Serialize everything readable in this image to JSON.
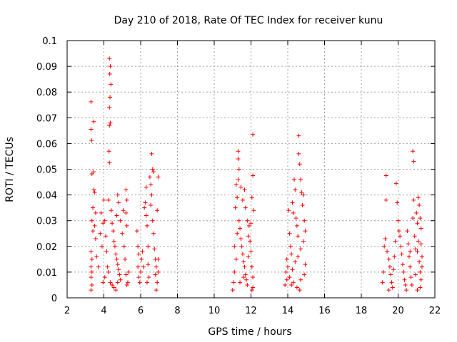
{
  "chart_data": {
    "type": "scatter",
    "title": "Day 210 of 2018, Rate Of TEC Index for receiver kunu",
    "xlabel": "GPS time / hours",
    "ylabel": "ROTI / TECUs",
    "xlim": [
      2,
      22
    ],
    "ylim": [
      0,
      0.1
    ],
    "xticks": [
      "2",
      "4",
      "6",
      "8",
      "10",
      "12",
      "14",
      "16",
      "18",
      "20",
      "22"
    ],
    "yticks": [
      "0",
      "0.01",
      "0.02",
      "0.03",
      "0.04",
      "0.05",
      "0.06",
      "0.07",
      "0.08",
      "0.09",
      "0.1"
    ],
    "grid": true,
    "marker": "+",
    "color": "#ff0000",
    "series": [
      {
        "points": [
          [
            3.3,
            0.0762
          ],
          [
            3.3,
            0.0655
          ],
          [
            3.33,
            0.0612
          ],
          [
            3.45,
            0.0685
          ],
          [
            3.35,
            0.0482
          ],
          [
            3.45,
            0.049
          ],
          [
            3.45,
            0.042
          ],
          [
            3.5,
            0.041
          ],
          [
            3.4,
            0.035
          ],
          [
            3.55,
            0.033
          ],
          [
            3.35,
            0.03
          ],
          [
            3.5,
            0.028
          ],
          [
            3.4,
            0.026
          ],
          [
            3.55,
            0.023
          ],
          [
            3.3,
            0.018
          ],
          [
            3.35,
            0.015
          ],
          [
            3.3,
            0.012
          ],
          [
            3.35,
            0.01
          ],
          [
            3.3,
            0.008
          ],
          [
            3.35,
            0.005
          ],
          [
            3.3,
            0.003
          ],
          [
            3.6,
            0.016
          ],
          [
            3.7,
            0.012
          ],
          [
            3.8,
            0.025
          ],
          [
            3.85,
            0.033
          ],
          [
            3.95,
            0.029
          ],
          [
            3.9,
            0.02
          ],
          [
            4.0,
            0.038
          ],
          [
            4.05,
            0.03
          ],
          [
            4.1,
            0.024
          ],
          [
            4.15,
            0.018
          ],
          [
            4.2,
            0.012
          ],
          [
            4.05,
            0.008
          ],
          [
            3.95,
            0.006
          ],
          [
            4.25,
            0.038
          ],
          [
            4.3,
            0.093
          ],
          [
            4.35,
            0.09
          ],
          [
            4.32,
            0.087
          ],
          [
            4.38,
            0.083
          ],
          [
            4.33,
            0.078
          ],
          [
            4.3,
            0.074
          ],
          [
            4.35,
            0.068
          ],
          [
            4.3,
            0.067
          ],
          [
            4.28,
            0.057
          ],
          [
            4.3,
            0.0525
          ],
          [
            4.4,
            0.034
          ],
          [
            4.45,
            0.029
          ],
          [
            4.5,
            0.026
          ],
          [
            4.55,
            0.022
          ],
          [
            4.6,
            0.02
          ],
          [
            4.65,
            0.017
          ],
          [
            4.7,
            0.015
          ],
          [
            4.75,
            0.013
          ],
          [
            4.8,
            0.011
          ],
          [
            4.85,
            0.009
          ],
          [
            4.25,
            0.01
          ],
          [
            4.35,
            0.006
          ],
          [
            4.45,
            0.005
          ],
          [
            4.55,
            0.004
          ],
          [
            4.65,
            0.003
          ],
          [
            4.75,
            0.006
          ],
          [
            4.9,
            0.007
          ],
          [
            4.7,
            0.032
          ],
          [
            4.8,
            0.037
          ],
          [
            4.75,
            0.04
          ],
          [
            4.9,
            0.03
          ],
          [
            5.0,
            0.025
          ],
          [
            5.05,
            0.034
          ],
          [
            5.1,
            0.02
          ],
          [
            5.15,
            0.015
          ],
          [
            5.2,
            0.042
          ],
          [
            5.25,
            0.038
          ],
          [
            5.2,
            0.033
          ],
          [
            5.25,
            0.028
          ],
          [
            5.3,
            0.006
          ],
          [
            5.25,
            0.005
          ],
          [
            5.35,
            0.01
          ],
          [
            5.2,
            0.009
          ],
          [
            5.8,
            0.026
          ],
          [
            5.85,
            0.02
          ],
          [
            5.9,
            0.017
          ],
          [
            5.85,
            0.012
          ],
          [
            5.9,
            0.008
          ],
          [
            5.95,
            0.006
          ],
          [
            6.0,
            0.01
          ],
          [
            6.05,
            0.015
          ],
          [
            6.1,
            0.018
          ],
          [
            6.15,
            0.012
          ],
          [
            6.2,
            0.035
          ],
          [
            6.25,
            0.037
          ],
          [
            6.3,
            0.032
          ],
          [
            6.3,
            0.043
          ],
          [
            6.35,
            0.028
          ],
          [
            6.4,
            0.02
          ],
          [
            6.4,
            0.013
          ],
          [
            6.45,
            0.008
          ],
          [
            6.35,
            0.006
          ],
          [
            6.5,
            0.047
          ],
          [
            6.55,
            0.044
          ],
          [
            6.6,
            0.056
          ],
          [
            6.65,
            0.05
          ],
          [
            6.7,
            0.049
          ],
          [
            6.6,
            0.04
          ],
          [
            6.55,
            0.036
          ],
          [
            6.65,
            0.03
          ],
          [
            6.7,
            0.025
          ],
          [
            6.75,
            0.019
          ],
          [
            6.8,
            0.015
          ],
          [
            6.85,
            0.012
          ],
          [
            6.8,
            0.009
          ],
          [
            6.9,
            0.006
          ],
          [
            6.85,
            0.003
          ],
          [
            6.95,
            0.047
          ],
          [
            6.9,
            0.034
          ],
          [
            6.95,
            0.01
          ],
          [
            6.95,
            0.015
          ],
          [
            11.0,
            0.003
          ],
          [
            11.05,
            0.006
          ],
          [
            11.1,
            0.01
          ],
          [
            11.15,
            0.035
          ],
          [
            11.2,
            0.044
          ],
          [
            11.25,
            0.039
          ],
          [
            11.3,
            0.057
          ],
          [
            11.3,
            0.054
          ],
          [
            11.35,
            0.05
          ],
          [
            11.3,
            0.046
          ],
          [
            11.35,
            0.03
          ],
          [
            11.4,
            0.027
          ],
          [
            11.45,
            0.023
          ],
          [
            11.5,
            0.02
          ],
          [
            11.55,
            0.017
          ],
          [
            11.6,
            0.014
          ],
          [
            11.65,
            0.012
          ],
          [
            11.7,
            0.009
          ],
          [
            11.75,
            0.007
          ],
          [
            11.8,
            0.005
          ],
          [
            11.45,
            0.043
          ],
          [
            11.55,
            0.038
          ],
          [
            11.65,
            0.042
          ],
          [
            11.7,
            0.035
          ],
          [
            11.8,
            0.03
          ],
          [
            11.85,
            0.024
          ],
          [
            11.9,
            0.028
          ],
          [
            11.95,
            0.022
          ],
          [
            12.0,
            0.018
          ],
          [
            12.05,
            0.012
          ],
          [
            12.1,
            0.008
          ],
          [
            12.1,
            0.004
          ],
          [
            12.05,
            0.003
          ],
          [
            12.1,
            0.0635
          ],
          [
            12.1,
            0.0475
          ],
          [
            12.05,
            0.039
          ],
          [
            12.15,
            0.034
          ],
          [
            12.0,
            0.029
          ],
          [
            11.85,
            0.016
          ],
          [
            11.6,
            0.008
          ],
          [
            11.4,
            0.006
          ],
          [
            11.2,
            0.015
          ],
          [
            11.1,
            0.02
          ],
          [
            11.25,
            0.025
          ],
          [
            13.85,
            0.005
          ],
          [
            13.9,
            0.01
          ],
          [
            13.95,
            0.015
          ],
          [
            14.0,
            0.012
          ],
          [
            14.05,
            0.034
          ],
          [
            14.1,
            0.025
          ],
          [
            14.15,
            0.02
          ],
          [
            14.2,
            0.017
          ],
          [
            14.25,
            0.037
          ],
          [
            14.3,
            0.033
          ],
          [
            14.35,
            0.046
          ],
          [
            14.4,
            0.042
          ],
          [
            14.45,
            0.031
          ],
          [
            14.5,
            0.028
          ],
          [
            14.55,
            0.024
          ],
          [
            14.6,
            0.063
          ],
          [
            14.6,
            0.056
          ],
          [
            14.65,
            0.052
          ],
          [
            14.7,
            0.046
          ],
          [
            14.75,
            0.041
          ],
          [
            14.8,
            0.036
          ],
          [
            14.85,
            0.04
          ],
          [
            14.9,
            0.03
          ],
          [
            14.95,
            0.026
          ],
          [
            14.85,
            0.022
          ],
          [
            14.7,
            0.019
          ],
          [
            14.55,
            0.016
          ],
          [
            14.4,
            0.014
          ],
          [
            14.25,
            0.011
          ],
          [
            14.1,
            0.008
          ],
          [
            14.3,
            0.006
          ],
          [
            14.5,
            0.004
          ],
          [
            14.7,
            0.007
          ],
          [
            14.9,
            0.009
          ],
          [
            14.95,
            0.013
          ],
          [
            14.65,
            0.003
          ],
          [
            14.2,
            0.005
          ],
          [
            13.95,
            0.007
          ],
          [
            19.15,
            0.006
          ],
          [
            19.2,
            0.01
          ],
          [
            19.25,
            0.02
          ],
          [
            19.3,
            0.023
          ],
          [
            19.35,
            0.0475
          ],
          [
            19.35,
            0.038
          ],
          [
            19.4,
            0.018
          ],
          [
            19.5,
            0.015
          ],
          [
            19.55,
            0.012
          ],
          [
            19.6,
            0.009
          ],
          [
            19.65,
            0.006
          ],
          [
            19.7,
            0.004
          ],
          [
            19.5,
            0.003
          ],
          [
            19.75,
            0.011
          ],
          [
            19.8,
            0.016
          ],
          [
            19.85,
            0.022
          ],
          [
            19.9,
            0.0445
          ],
          [
            19.95,
            0.037
          ],
          [
            20.0,
            0.03
          ],
          [
            20.05,
            0.026
          ],
          [
            20.1,
            0.024
          ],
          [
            20.15,
            0.02
          ],
          [
            20.2,
            0.017
          ],
          [
            20.25,
            0.013
          ],
          [
            20.3,
            0.01
          ],
          [
            20.35,
            0.007
          ],
          [
            20.4,
            0.005
          ],
          [
            20.45,
            0.003
          ],
          [
            20.5,
            0.026
          ],
          [
            20.55,
            0.021
          ],
          [
            20.6,
            0.016
          ],
          [
            20.65,
            0.012
          ],
          [
            20.7,
            0.008
          ],
          [
            20.75,
            0.005
          ],
          [
            20.8,
            0.057
          ],
          [
            20.85,
            0.053
          ],
          [
            20.85,
            0.038
          ],
          [
            20.8,
            0.031
          ],
          [
            20.9,
            0.024
          ],
          [
            20.95,
            0.019
          ],
          [
            21.0,
            0.033
          ],
          [
            21.05,
            0.029
          ],
          [
            21.1,
            0.039
          ],
          [
            21.15,
            0.036
          ],
          [
            21.2,
            0.031
          ],
          [
            21.25,
            0.027
          ],
          [
            21.1,
            0.022
          ],
          [
            21.05,
            0.018
          ],
          [
            21.15,
            0.014
          ],
          [
            21.2,
            0.01
          ],
          [
            21.25,
            0.007
          ],
          [
            21.2,
            0.004
          ],
          [
            21.05,
            0.003
          ],
          [
            20.95,
            0.009
          ],
          [
            20.65,
            0.018
          ],
          [
            21.25,
            0.021
          ],
          [
            21.3,
            0.016
          ],
          [
            21.3,
            0.012
          ]
        ]
      }
    ]
  }
}
